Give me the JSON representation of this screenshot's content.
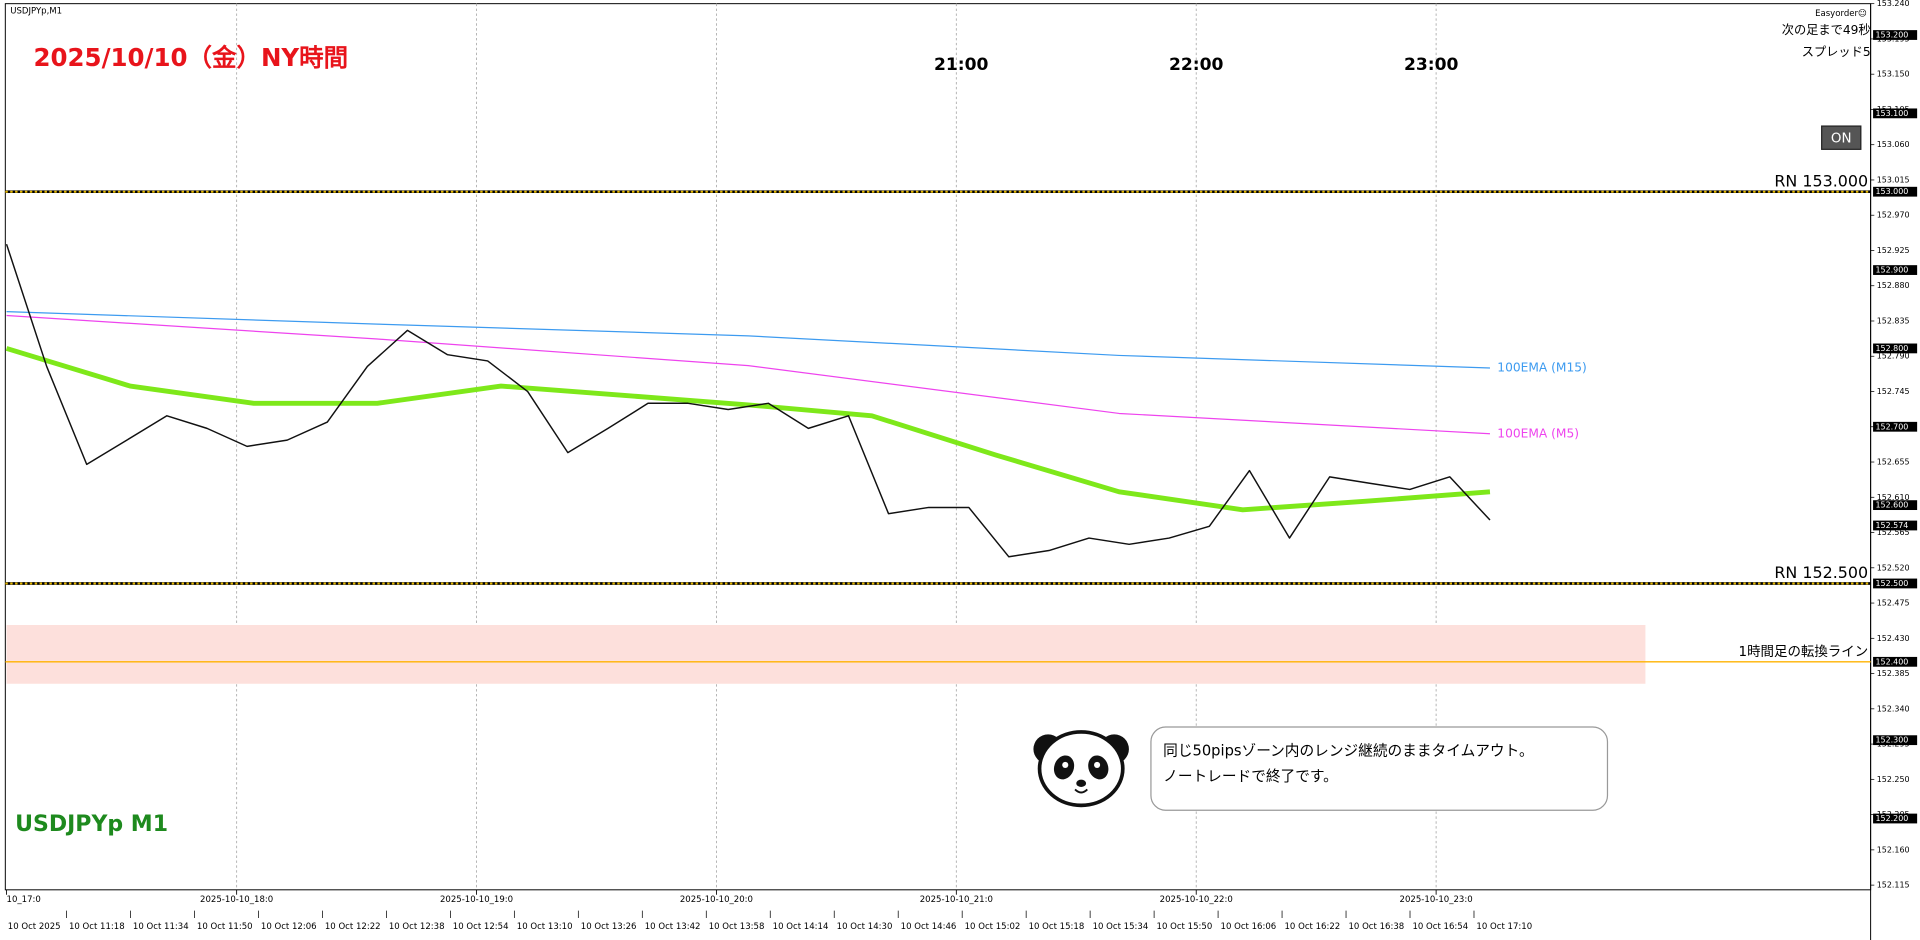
{
  "chart_data": {
    "type": "line",
    "symbol": "USDJPYp,M1",
    "title": "2025/10/10（金）NY時間",
    "watermark": "USDJPYp M1",
    "hour_labels": [
      "21:00",
      "22:00",
      "23:00"
    ],
    "x_hour_labels": [
      "10_17:0",
      "2025-10-10_18:0",
      "2025-10-10_19:0",
      "2025-10-10_20:0",
      "2025-10-10_21:0",
      "2025-10-10_22:0",
      "2025-10-10_23:0"
    ],
    "x_time_labels": [
      "10 Oct 2025",
      "10 Oct 11:18",
      "10 Oct 11:34",
      "10 Oct 11:50",
      "10 Oct 12:06",
      "10 Oct 12:22",
      "10 Oct 12:38",
      "10 Oct 12:54",
      "10 Oct 13:10",
      "10 Oct 13:26",
      "10 Oct 13:42",
      "10 Oct 13:58",
      "10 Oct 14:14",
      "10 Oct 14:30",
      "10 Oct 14:46",
      "10 Oct 15:02",
      "10 Oct 15:18",
      "10 Oct 15:34",
      "10 Oct 15:50",
      "10 Oct 16:06",
      "10 Oct 16:22",
      "10 Oct 16:38",
      "10 Oct 16:54",
      "10 Oct 17:10"
    ],
    "ylim": [
      152.109,
      153.24
    ],
    "yticks": [
      {
        "value": 153.24,
        "label": "153.240"
      },
      153.195,
      {
        "value": 153.15,
        "label": "153.150"
      },
      153.105,
      {
        "value": 153.06,
        "label": "153.060"
      },
      153.015,
      {
        "value": 152.97,
        "label": "152.970"
      },
      152.925,
      {
        "value": 152.88,
        "label": "152.880"
      },
      152.835,
      {
        "value": 152.79,
        "label": "152.790"
      },
      152.745,
      {
        "value": 152.7,
        "label": "152.700"
      },
      152.655,
      {
        "value": 152.61,
        "label": "152.610"
      },
      152.565,
      {
        "value": 152.52,
        "label": "152.520"
      },
      152.475,
      {
        "value": 152.43,
        "label": "152.430"
      },
      152.385,
      {
        "value": 152.34,
        "label": "152.340"
      },
      152.295,
      {
        "value": 152.25,
        "label": "152.250"
      },
      152.205,
      {
        "value": 152.16,
        "label": "152.160"
      },
      152.115
    ],
    "price_tags": [
      {
        "value": 153.2,
        "label": "153.200"
      },
      {
        "value": 153.1,
        "label": "153.100"
      },
      {
        "value": 153.0,
        "label": "153.000"
      },
      {
        "value": 152.9,
        "label": "152.900"
      },
      {
        "value": 152.8,
        "label": "152.800"
      },
      {
        "value": 152.7,
        "label": "152.700"
      },
      {
        "value": 152.6,
        "label": "152.600"
      },
      152.574,
      {
        "value": 152.5,
        "label": "152.500"
      },
      {
        "value": 152.4,
        "label": "152.400"
      },
      {
        "value": 152.3,
        "label": "152.300"
      },
      {
        "value": 152.2,
        "label": "152.200"
      }
    ],
    "levels": [
      {
        "value": 153.0,
        "label": "RN 153.000",
        "color": "#e6b800"
      },
      {
        "value": 152.5,
        "label": "RN 152.500",
        "color": "#e6b800"
      },
      {
        "value": 152.4,
        "label": "1時間足の転換ライン",
        "color": "#ffb300"
      }
    ],
    "zone": [
      152.372,
      152.447
    ],
    "zone_color": "#fde0dc",
    "series": [
      {
        "color": "#111111",
        "values": [
          152.933,
          152.777,
          152.652,
          152.683,
          152.714,
          152.698,
          152.675,
          152.683,
          152.706,
          152.777,
          152.823,
          152.792,
          152.784,
          152.745,
          152.667,
          152.698,
          152.73,
          152.73,
          152.722,
          152.73,
          152.698,
          152.714,
          152.589,
          152.597,
          152.597,
          152.534,
          152.542,
          152.558,
          152.55,
          152.558,
          152.573,
          152.644,
          152.558,
          152.636,
          152.628,
          152.62,
          152.636,
          152.581
        ]
      },
      {
        "color": "#7ee81a",
        "values": [
          152.8,
          152.752,
          152.73,
          152.73,
          152.752,
          152.74,
          152.728,
          152.714,
          152.664,
          152.617,
          152.594,
          152.605,
          152.617
        ]
      },
      {
        "name": "100EMA (M15)",
        "color": "#3d9bf0",
        "values": [
          152.847,
          152.831,
          152.816,
          152.791,
          152.775
        ]
      },
      {
        "name": "100EMA (M5)",
        "color": "#ee44ee",
        "values": [
          152.842,
          152.812,
          152.778,
          152.717,
          152.691
        ]
      }
    ],
    "annotation": [
      "同じ50pipsゾーン内のレンジ継続のままタイムアウト。",
      "ノートレードで終了です。"
    ]
  },
  "panel": {
    "indicator": "Easyorder☺",
    "countdown": "次の足まで49秒",
    "spread": "スプレッド5",
    "button": "ON"
  }
}
